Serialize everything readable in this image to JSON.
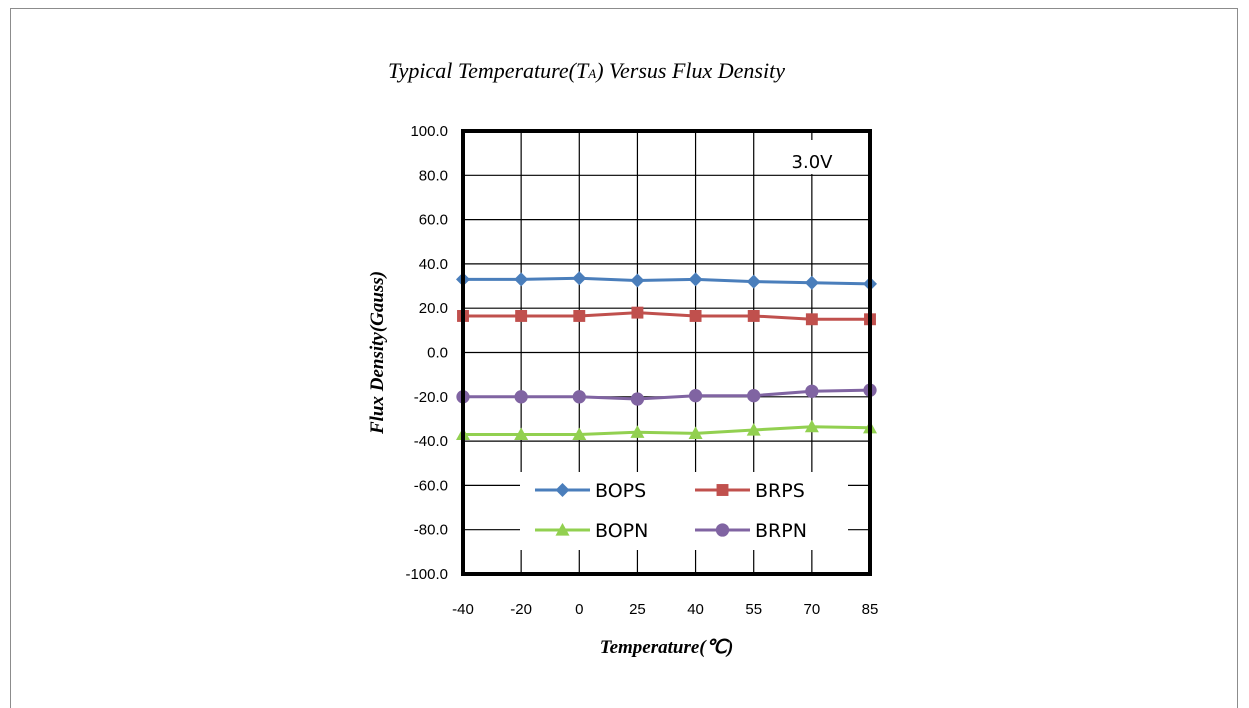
{
  "chart_data": {
    "type": "line",
    "title": "Typical Temperature(TA) Versus Flux Density",
    "title_main": "Typical Temperature(T",
    "title_sub": "A",
    "title_rest": ") Versus Flux Density",
    "xlabel": "Temperature(℃)",
    "ylabel": "Flux Density(Gauss)",
    "categories": [
      "-40",
      "-20",
      "0",
      "25",
      "40",
      "55",
      "70",
      "85"
    ],
    "y_ticks": [
      "100.0",
      "80.0",
      "60.0",
      "40.0",
      "20.0",
      "0.0",
      "-20.0",
      "-40.0",
      "-60.0",
      "-80.0",
      "-100.0"
    ],
    "ylim": [
      -100,
      100
    ],
    "grid": true,
    "annotation": "3.0V",
    "legend_position": "lower-center",
    "series": [
      {
        "name": "BOPS",
        "values": [
          33.0,
          33.0,
          33.5,
          32.5,
          33.0,
          32.0,
          31.5,
          31.0
        ],
        "color": "#4a7ebb",
        "marker": "diamond"
      },
      {
        "name": "BRPS",
        "values": [
          16.5,
          16.5,
          16.5,
          18.0,
          16.5,
          16.5,
          15.0,
          15.0
        ],
        "color": "#c0504d",
        "marker": "square"
      },
      {
        "name": "BOPN",
        "values": [
          -37.0,
          -37.0,
          -37.0,
          -36.0,
          -36.5,
          -35.0,
          -33.5,
          -34.0
        ],
        "color": "#92d050",
        "marker": "triangle"
      },
      {
        "name": "BRPN",
        "values": [
          -20.0,
          -20.0,
          -20.0,
          -21.0,
          -19.5,
          -19.5,
          -17.5,
          -17.0
        ],
        "color": "#8064a2",
        "marker": "circle"
      }
    ]
  }
}
